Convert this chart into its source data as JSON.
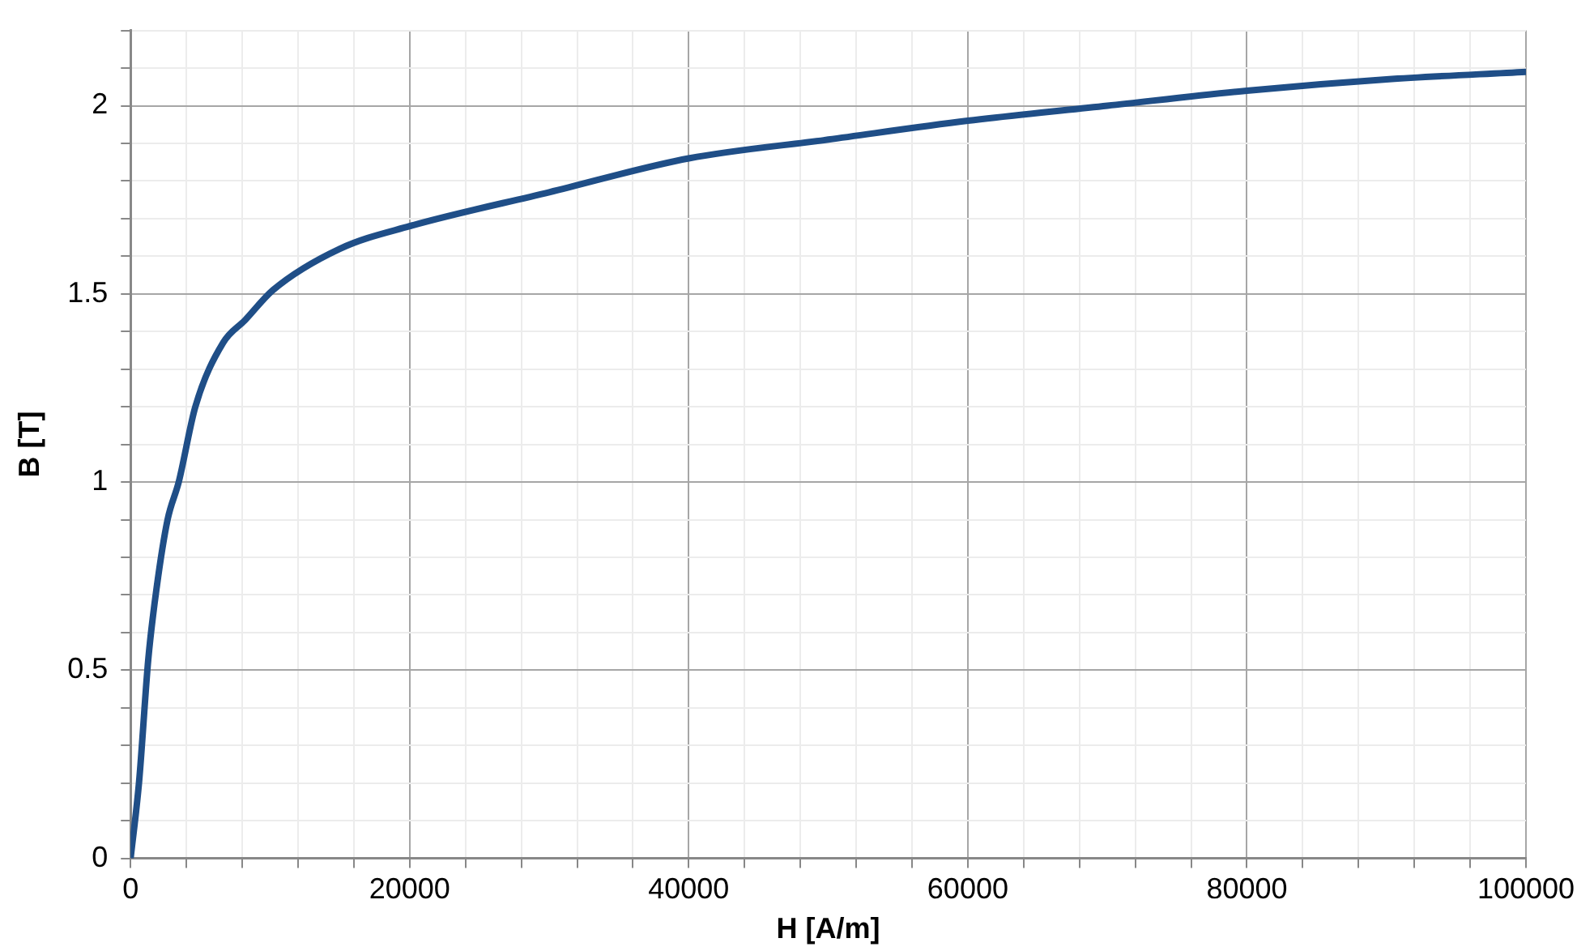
{
  "chart_data": {
    "type": "line",
    "xlabel": "H [A/m]",
    "ylabel": "B [T]",
    "x": [
      0,
      600,
      1270,
      1870,
      2650,
      3450,
      4640,
      6630,
      8200,
      10200,
      15000,
      20000,
      30000,
      40000,
      50000,
      60000,
      70000,
      80000,
      90000,
      100000
    ],
    "series": [
      {
        "color": "#1f4e87",
        "values": [
          0,
          0.2,
          0.53,
          0.72,
          0.9,
          1.0,
          1.2,
          1.37,
          1.43,
          1.51,
          1.62,
          1.68,
          1.77,
          1.86,
          1.91,
          1.96,
          2.0,
          2.04,
          2.07,
          2.09
        ]
      }
    ],
    "xlim": [
      0,
      100000
    ],
    "xticks": [
      0,
      {
        "value": 4000,
        "label": null
      },
      {
        "value": 8000,
        "label": null
      },
      {
        "value": 12000,
        "label": null
      },
      {
        "value": 16000,
        "label": null
      },
      20000,
      {
        "value": 24000,
        "label": null
      },
      {
        "value": 28000,
        "label": null
      },
      {
        "value": 32000,
        "label": null
      },
      {
        "value": 36000,
        "label": null
      },
      40000,
      {
        "value": 44000,
        "label": null
      },
      {
        "value": 48000,
        "label": null
      },
      {
        "value": 52000,
        "label": null
      },
      {
        "value": 56000,
        "label": null
      },
      60000,
      {
        "value": 64000,
        "label": null
      },
      {
        "value": 68000,
        "label": null
      },
      {
        "value": 72000,
        "label": null
      },
      {
        "value": 76000,
        "label": null
      },
      80000,
      {
        "value": 84000,
        "label": null
      },
      {
        "value": 88000,
        "label": null
      },
      {
        "value": 92000,
        "label": null
      },
      {
        "value": 96000,
        "label": null
      },
      100000
    ],
    "ylim": [
      0,
      2.2
    ],
    "yticks": [
      0,
      {
        "value": 0.1,
        "label": null
      },
      {
        "value": 0.2,
        "label": null
      },
      {
        "value": 0.3,
        "label": null
      },
      {
        "value": 0.4,
        "label": null
      },
      0.5,
      {
        "value": 0.6,
        "label": null
      },
      {
        "value": 0.7,
        "label": null
      },
      {
        "value": 0.8,
        "label": null
      },
      {
        "value": 0.9,
        "label": null
      },
      1,
      {
        "value": 1.1,
        "label": null
      },
      {
        "value": 1.2,
        "label": null
      },
      {
        "value": 1.3,
        "label": null
      },
      {
        "value": 1.4,
        "label": null
      },
      1.5,
      {
        "value": 1.6,
        "label": null
      },
      {
        "value": 1.7,
        "label": null
      },
      {
        "value": 1.8,
        "label": null
      },
      {
        "value": 1.9,
        "label": null
      },
      2,
      {
        "value": 2.1,
        "label": null
      },
      {
        "value": 2.2,
        "label": null
      }
    ],
    "grid": true,
    "legend": false,
    "marker": "none",
    "line_style": "solid"
  }
}
